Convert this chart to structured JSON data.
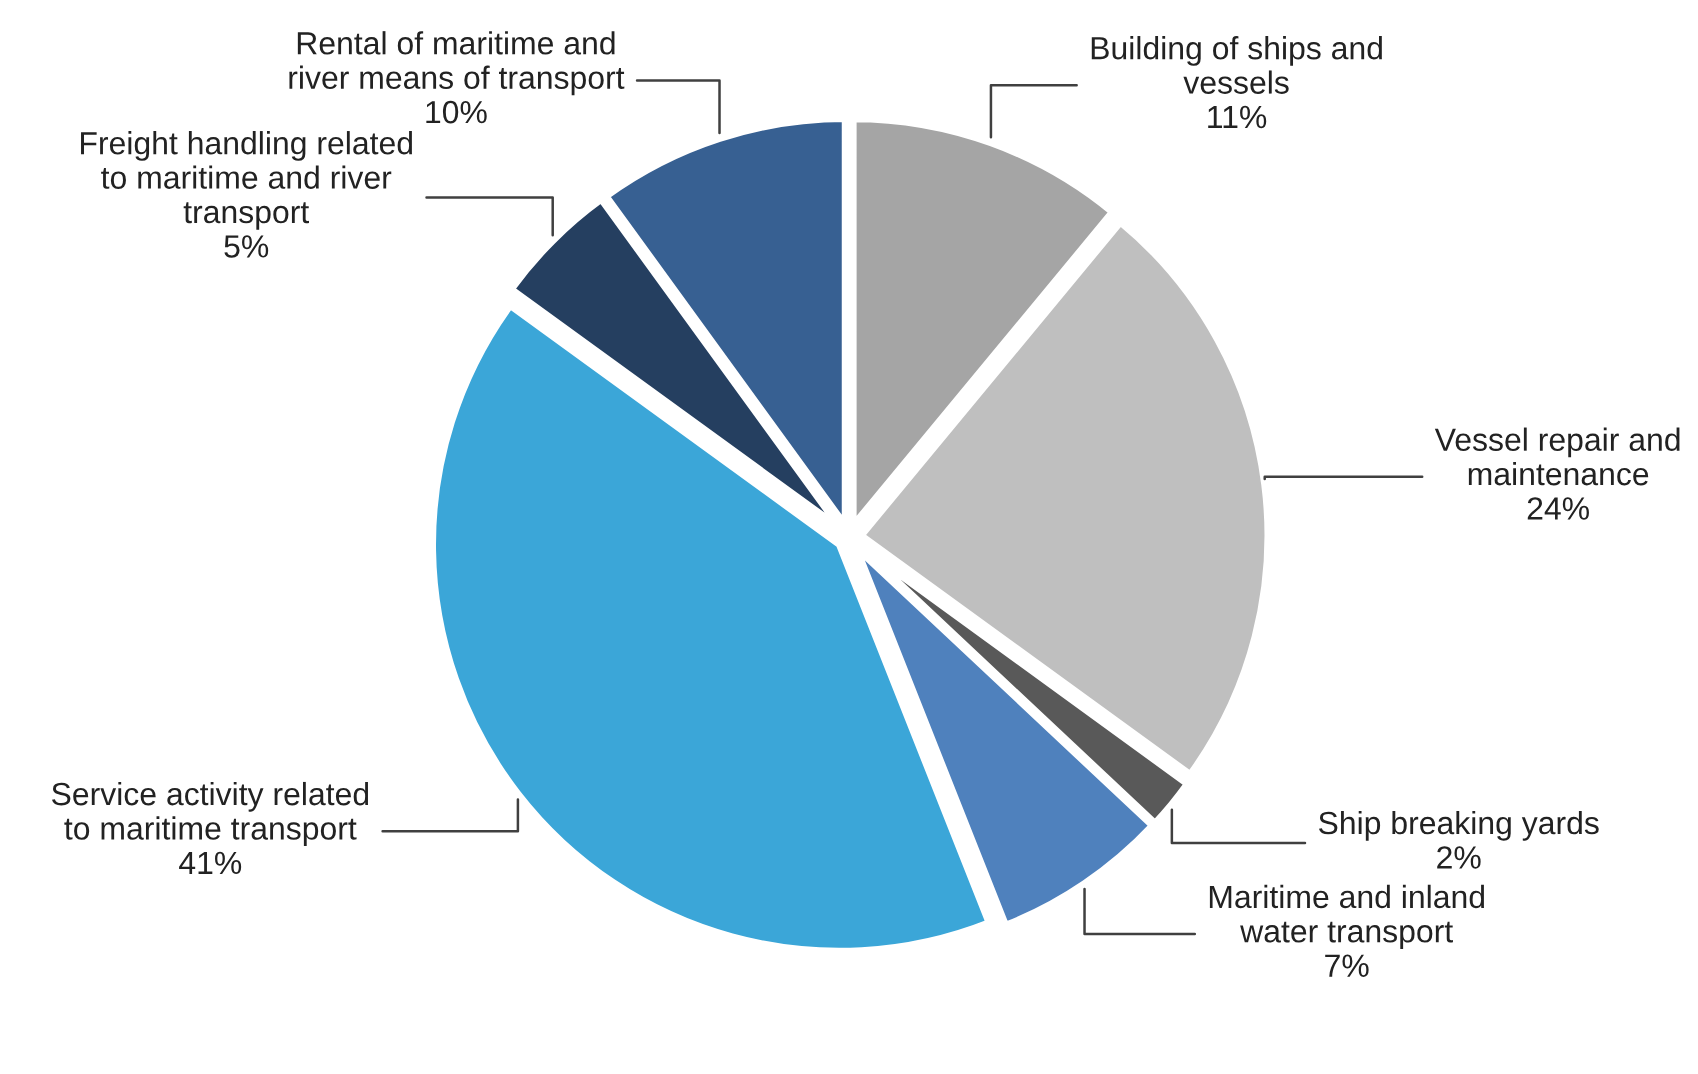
{
  "chart_data": {
    "type": "pie",
    "categories": [
      "Building of ships and\nvessels",
      "Vessel repair and\nmaintenance",
      "Ship breaking yards",
      "Maritime and inland\nwater transport",
      "Service activity related\nto maritime transport",
      "Freight handling related\nto maritime and river\ntransport",
      "Rental of maritime and\nriver means of transport"
    ],
    "values": [
      11,
      24,
      2,
      7,
      41,
      5,
      10
    ],
    "value_labels": [
      "11%",
      "24%",
      "2%",
      "7%",
      "41%",
      "5%",
      "10%"
    ],
    "colors": [
      "#a5a5a5",
      "#bfbfbf",
      "#595959",
      "#4f81bd",
      "#3ba6d8",
      "#253f60",
      "#376092"
    ],
    "legend": false
  }
}
